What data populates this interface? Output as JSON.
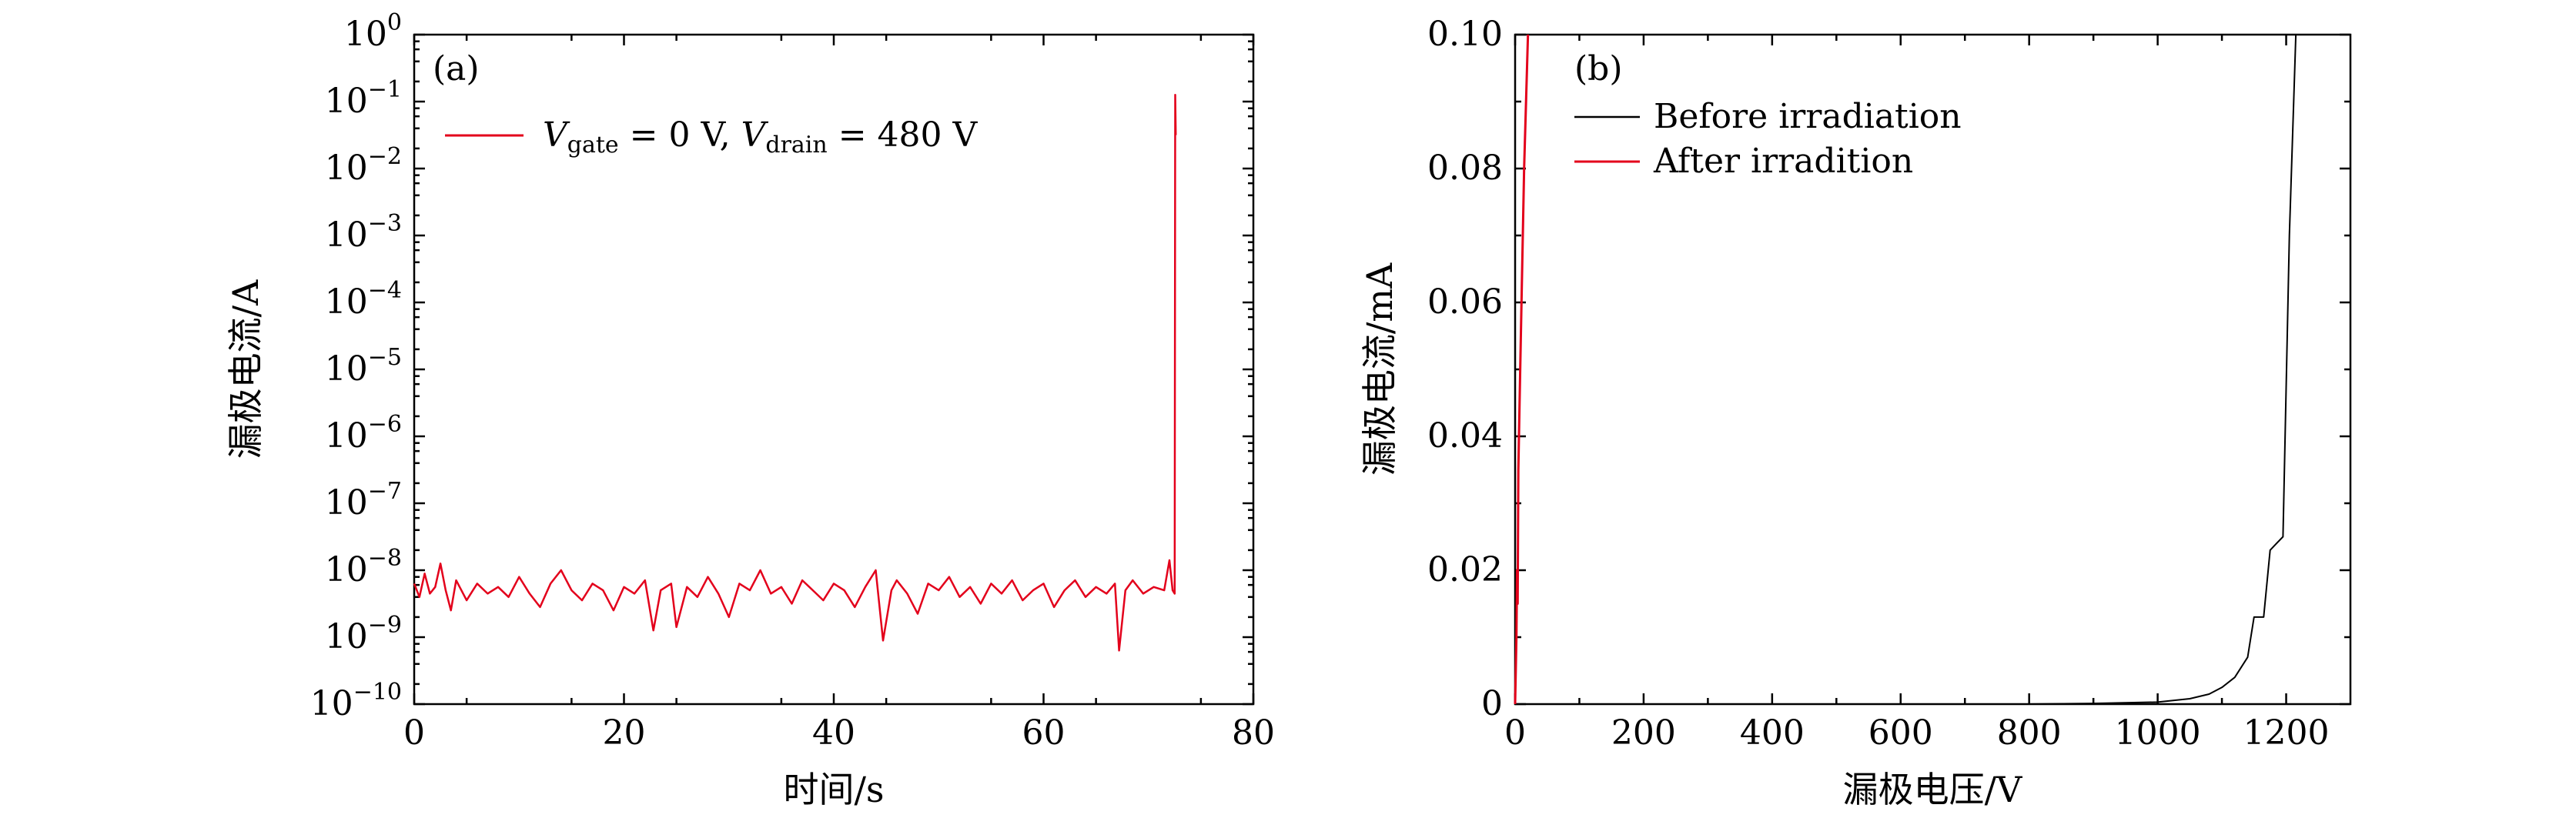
{
  "chart_data": [
    {
      "panel": "(a)",
      "type": "line",
      "xlabel": "时间/s",
      "ylabel": "漏极电流/A",
      "xlim": [
        0,
        80
      ],
      "ylim_exponent": [
        -10,
        0
      ],
      "yscale": "log",
      "x_ticks": [
        "0",
        "20",
        "40",
        "60",
        "80"
      ],
      "y_tick_exponents": [
        "0",
        "−1",
        "−2",
        "−3",
        "−4",
        "−5",
        "−6",
        "−7",
        "−8",
        "−9",
        "−10"
      ],
      "legend_position": "top-left",
      "legend": {
        "color": "#e3001b",
        "label_parts": [
          "V",
          "gate",
          " = 0 V, ",
          "V",
          "drain",
          " = 480 V"
        ]
      },
      "series": [
        {
          "color": "#e3001b",
          "description_x_end": 72.6,
          "noise_level_exp_range": [
            -9.2,
            -7.85
          ],
          "points": [
            [
              0.0,
              -8.2
            ],
            [
              0.5,
              -8.4
            ],
            [
              1.0,
              -8.05
            ],
            [
              1.5,
              -8.35
            ],
            [
              2.0,
              -8.25
            ],
            [
              2.5,
              -7.9
            ],
            [
              3.0,
              -8.3
            ],
            [
              3.5,
              -8.6
            ],
            [
              4.0,
              -8.15
            ],
            [
              4.5,
              -8.3
            ],
            [
              5.0,
              -8.45
            ],
            [
              6.0,
              -8.2
            ],
            [
              7.0,
              -8.35
            ],
            [
              8.0,
              -8.25
            ],
            [
              9.0,
              -8.4
            ],
            [
              10.0,
              -8.1
            ],
            [
              11.0,
              -8.35
            ],
            [
              12.0,
              -8.55
            ],
            [
              13.0,
              -8.2
            ],
            [
              14.0,
              -8.0
            ],
            [
              15.0,
              -8.3
            ],
            [
              16.0,
              -8.45
            ],
            [
              17.0,
              -8.2
            ],
            [
              18.0,
              -8.3
            ],
            [
              19.0,
              -8.6
            ],
            [
              20.0,
              -8.25
            ],
            [
              21.0,
              -8.35
            ],
            [
              22.0,
              -8.15
            ],
            [
              22.8,
              -8.9
            ],
            [
              23.5,
              -8.3
            ],
            [
              24.5,
              -8.2
            ],
            [
              25.0,
              -8.85
            ],
            [
              26.0,
              -8.25
            ],
            [
              27.0,
              -8.4
            ],
            [
              28.0,
              -8.1
            ],
            [
              29.0,
              -8.35
            ],
            [
              30.0,
              -8.7
            ],
            [
              31.0,
              -8.2
            ],
            [
              32.0,
              -8.3
            ],
            [
              33.0,
              -8.0
            ],
            [
              34.0,
              -8.35
            ],
            [
              35.0,
              -8.25
            ],
            [
              36.0,
              -8.5
            ],
            [
              37.0,
              -8.15
            ],
            [
              38.0,
              -8.3
            ],
            [
              39.0,
              -8.45
            ],
            [
              40.0,
              -8.2
            ],
            [
              41.0,
              -8.3
            ],
            [
              42.0,
              -8.55
            ],
            [
              43.0,
              -8.25
            ],
            [
              44.0,
              -8.0
            ],
            [
              44.7,
              -9.05
            ],
            [
              45.5,
              -8.3
            ],
            [
              46.0,
              -8.15
            ],
            [
              47.0,
              -8.35
            ],
            [
              48.0,
              -8.65
            ],
            [
              49.0,
              -8.2
            ],
            [
              50.0,
              -8.3
            ],
            [
              51.0,
              -8.1
            ],
            [
              52.0,
              -8.4
            ],
            [
              53.0,
              -8.25
            ],
            [
              54.0,
              -8.5
            ],
            [
              55.0,
              -8.2
            ],
            [
              56.0,
              -8.35
            ],
            [
              57.0,
              -8.15
            ],
            [
              58.0,
              -8.45
            ],
            [
              59.0,
              -8.3
            ],
            [
              60.0,
              -8.2
            ],
            [
              61.0,
              -8.55
            ],
            [
              62.0,
              -8.3
            ],
            [
              63.0,
              -8.15
            ],
            [
              64.0,
              -8.4
            ],
            [
              65.0,
              -8.25
            ],
            [
              66.0,
              -8.35
            ],
            [
              66.8,
              -8.2
            ],
            [
              67.2,
              -9.2
            ],
            [
              67.8,
              -8.3
            ],
            [
              68.5,
              -8.15
            ],
            [
              69.5,
              -8.35
            ],
            [
              70.5,
              -8.25
            ],
            [
              71.5,
              -8.3
            ],
            [
              72.0,
              -7.85
            ],
            [
              72.3,
              -8.3
            ],
            [
              72.5,
              -8.35
            ],
            [
              72.55,
              -0.9
            ],
            [
              72.6,
              -1.5
            ]
          ]
        }
      ]
    },
    {
      "panel": "(b)",
      "type": "line",
      "xlabel": "漏极电压/V",
      "ylabel": "漏极电流/mA",
      "xlim": [
        0,
        1300
      ],
      "ylim": [
        0,
        0.1
      ],
      "x_ticks": [
        "0",
        "200",
        "400",
        "600",
        "800",
        "1000",
        "1200"
      ],
      "y_ticks": [
        "0",
        "0.02",
        "0.04",
        "0.06",
        "0.08",
        "0.10"
      ],
      "legend_position": "top-left",
      "series": [
        {
          "name": "Before irradiation",
          "color": "#000000",
          "points": [
            [
              0,
              0.0
            ],
            [
              200,
              0.0
            ],
            [
              400,
              0.0
            ],
            [
              600,
              0.0
            ],
            [
              800,
              0.0
            ],
            [
              900,
              0.0001
            ],
            [
              1000,
              0.0003
            ],
            [
              1050,
              0.0008
            ],
            [
              1080,
              0.0015
            ],
            [
              1100,
              0.0025
            ],
            [
              1120,
              0.004
            ],
            [
              1140,
              0.007
            ],
            [
              1150,
              0.013
            ],
            [
              1165,
              0.013
            ],
            [
              1175,
              0.023
            ],
            [
              1185,
              0.024
            ],
            [
              1195,
              0.025
            ],
            [
              1205,
              0.07
            ],
            [
              1215,
              0.1
            ]
          ]
        },
        {
          "name": "After irradition",
          "color": "#e3001b",
          "points": [
            [
              0,
              0.0
            ],
            [
              2,
              0.01
            ],
            [
              3,
              0.02
            ],
            [
              4,
              0.015
            ],
            [
              5,
              0.035
            ],
            [
              7,
              0.045
            ],
            [
              10,
              0.06
            ],
            [
              14,
              0.08
            ],
            [
              20,
              0.1
            ]
          ]
        }
      ]
    }
  ]
}
